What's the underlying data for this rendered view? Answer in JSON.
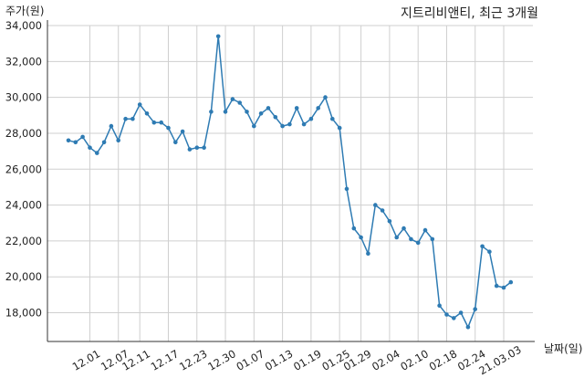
{
  "chart_data": {
    "type": "line",
    "title": "지트리비앤티, 최근 3개월",
    "ylabel": "주가(원)",
    "xlabel": "날짜(일)",
    "ylim": [
      16400,
      34000
    ],
    "yticks": [
      18000,
      20000,
      22000,
      24000,
      26000,
      28000,
      30000,
      32000,
      34000
    ],
    "ytick_labels": [
      "18,000",
      "20,000",
      "22,000",
      "24,000",
      "26,000",
      "28,000",
      "30,000",
      "32,000",
      "34,000"
    ],
    "xtick_labels": [
      "12.01",
      "12.07",
      "12.11",
      "12.17",
      "12.23",
      "12.30",
      "01.07",
      "01.13",
      "01.19",
      "01.25",
      "01.29",
      "02.04",
      "02.10",
      "02.18",
      "02.24",
      "21.03.03"
    ],
    "xtick_positions": [
      3,
      7,
      10,
      14,
      18,
      22,
      26,
      30,
      34,
      38,
      41,
      45,
      49,
      53,
      57,
      61
    ],
    "grid": true,
    "legend": "none",
    "line_color": "#2e7bb3",
    "series": [
      {
        "values": [
          27600,
          27500,
          27800,
          27200,
          26900,
          27500,
          28400,
          27600,
          28800,
          28800,
          29600,
          29100,
          28600,
          28600,
          28300,
          27500,
          28100,
          27100,
          27200,
          27200,
          29200,
          33400,
          29200,
          29900,
          29700,
          29200,
          28400,
          29100,
          29400,
          28900,
          28400,
          28500,
          29400,
          28500,
          28800,
          29400,
          30000,
          28800,
          28300,
          24900,
          22700,
          22200,
          21300,
          24000,
          23700,
          23100,
          22200,
          22700,
          22100,
          21900,
          22600,
          22100,
          18400,
          17900,
          17700,
          18000,
          17200,
          18200,
          21700,
          21400,
          19500,
          19400,
          19700
        ]
      }
    ]
  }
}
